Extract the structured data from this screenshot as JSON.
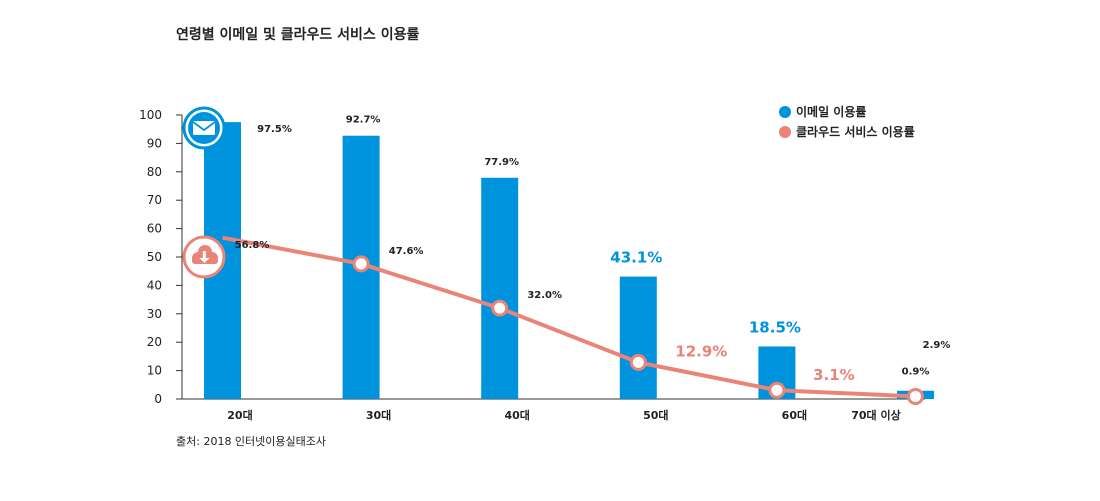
{
  "title": "연령별 이메일 및 클라우드 서비스 이용률",
  "source": "출처: 2018 인터넷이용실태조사",
  "colors": {
    "email": "#0093dd",
    "cloud": "#ea8478",
    "axis": "#333333",
    "text": "#222222"
  },
  "icons": {
    "email": "envelope-icon",
    "cloud": "cloud-download-icon"
  },
  "chart_data": {
    "type": "bar",
    "title": "연령별 이메일 및 클라우드 서비스 이용률",
    "xlabel": "",
    "ylabel": "",
    "ylim": [
      0,
      100
    ],
    "yticks": [
      0,
      10,
      20,
      30,
      40,
      50,
      60,
      70,
      80,
      90,
      100
    ],
    "categories": [
      "20대",
      "30대",
      "40대",
      "50대",
      "60대",
      "70대 이상"
    ],
    "series": [
      {
        "name": "이메일 이용률",
        "type": "bar",
        "values": [
          97.5,
          92.7,
          77.9,
          43.1,
          18.5,
          2.9
        ],
        "labels": [
          "97.5%",
          "92.7%",
          "77.9%",
          "43.1%",
          "18.5%",
          "2.9%"
        ]
      },
      {
        "name": "클라우드 서비스 이용률",
        "type": "line",
        "values": [
          56.8,
          47.6,
          32.0,
          12.9,
          3.1,
          0.9
        ],
        "labels": [
          "56.8%",
          "47.6%",
          "32.0%",
          "12.9%",
          "3.1%",
          "0.9%"
        ]
      }
    ],
    "legend": "top-right",
    "grid": false
  }
}
